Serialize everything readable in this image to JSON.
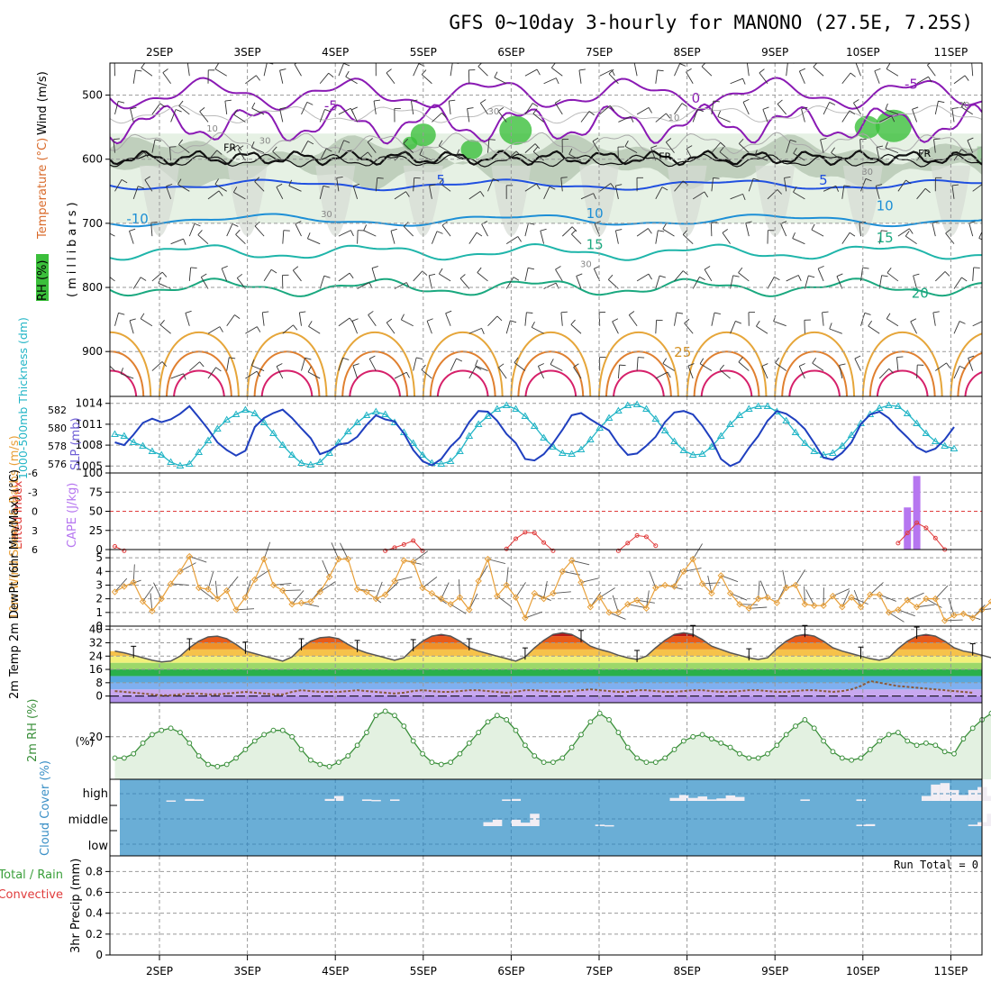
{
  "title": "GFS 0~10day 3-hourly for MANONO (27.5E, 7.25S)",
  "colors": {
    "slp": "#1f3fbf",
    "thickness": "#22b5c6",
    "cape": "#b676f0",
    "li": "#e03c3c",
    "wind": "#e8a03a",
    "rh": "#3a8f3a",
    "rh_fill": "#e3f1e1",
    "cloud_bg": "#6aaed6",
    "cloud_patch": "#f2eef4",
    "green_dark": "#3bbf3b",
    "purple": "#8a1ab4",
    "blue": "#2050e0"
  },
  "chart_data": [
    {
      "type": "heatmap",
      "name": "upper",
      "days": [
        "2SEP",
        "3SEP",
        "4SEP",
        "5SEP",
        "6SEP",
        "7SEP",
        "8SEP",
        "9SEP",
        "10SEP",
        "11SEP"
      ],
      "ylabel": "(millibars)",
      "side_labels": [
        "Temperature (°C)",
        "Wind (m/s)",
        "RH (%)"
      ],
      "yticks": [
        500,
        600,
        700,
        800,
        900
      ],
      "ylim": [
        450,
        970
      ],
      "contour_labels": [
        {
          "text": "-5",
          "day": 1.95,
          "p": 524,
          "c": "purple"
        },
        {
          "text": "0",
          "day": 6.1,
          "p": 512,
          "c": "purple"
        },
        {
          "text": "-5",
          "day": 8.55,
          "p": 490,
          "c": "purple"
        },
        {
          "text": "FR",
          "day": 0.8,
          "p": 587,
          "c": "black"
        },
        {
          "text": "FR",
          "day": 5.75,
          "p": 601,
          "c": "black"
        },
        {
          "text": "FR",
          "day": 8.7,
          "p": 596,
          "c": "black"
        },
        {
          "text": "5",
          "day": 3.2,
          "p": 640,
          "c": "blue"
        },
        {
          "text": "5",
          "day": 7.55,
          "p": 640,
          "c": "blue"
        },
        {
          "text": "-10",
          "day": -0.25,
          "p": 700,
          "c": "cyan"
        },
        {
          "text": "10",
          "day": 4.95,
          "p": 692,
          "c": "cyan"
        },
        {
          "text": "10",
          "day": 8.25,
          "p": 680,
          "c": "cyan"
        },
        {
          "text": "15",
          "day": 4.95,
          "p": 740,
          "c": "teal"
        },
        {
          "text": "15",
          "day": 8.25,
          "p": 730,
          "c": "teal"
        },
        {
          "text": "20",
          "day": 8.65,
          "p": 816,
          "c": "teal"
        },
        {
          "text": "25",
          "day": 5.95,
          "p": 908,
          "c": "orange"
        },
        {
          "text": "10",
          "day": 0.6,
          "p": 557,
          "c": "gray"
        },
        {
          "text": "30",
          "day": 1.2,
          "p": 576,
          "c": "gray"
        },
        {
          "text": "30",
          "day": 3.8,
          "p": 530,
          "c": "gray"
        },
        {
          "text": "10",
          "day": 5.85,
          "p": 540,
          "c": "gray"
        },
        {
          "text": "30",
          "day": 8.05,
          "p": 624,
          "c": "gray"
        },
        {
          "text": "30",
          "day": 9.15,
          "p": 520,
          "c": "gray"
        },
        {
          "text": "30",
          "day": 1.9,
          "p": 690,
          "c": "gray"
        },
        {
          "text": "30",
          "day": 4.85,
          "p": 768,
          "c": "gray"
        }
      ]
    },
    {
      "type": "line",
      "name": "slp_thickness",
      "ylabel": "SLP (mb)",
      "ylabel2": "1000-500mb Thickness (dm)",
      "yticks": [
        1005,
        1008,
        1011,
        1014
      ],
      "ylim": [
        1004,
        1015
      ],
      "yticks2": [
        576,
        578,
        580,
        582
      ],
      "ylim2": [
        575,
        583.5
      ],
      "slp": [
        1008.4,
        1008.0,
        1009.5,
        1011.2,
        1011.8,
        1011.3,
        1011.7,
        1012.5,
        1013.6,
        1012.0,
        1010.3,
        1008.4,
        1007.3,
        1006.5,
        1007.2,
        1010.6,
        1011.9,
        1012.6,
        1013.1,
        1011.9,
        1010.4,
        1009.0,
        1006.7,
        1007.2,
        1008.1,
        1008.3,
        1009.2,
        1010.9,
        1012.3,
        1011.7,
        1011.4,
        1009.7,
        1007.3,
        1005.7,
        1005.1,
        1006.0,
        1007.8,
        1009.1,
        1011.3,
        1012.9,
        1012.8,
        1011.5,
        1009.6,
        1008.3,
        1006.0,
        1005.8,
        1006.7,
        1008.3,
        1010.2,
        1012.3,
        1012.6,
        1011.7,
        1010.9,
        1010.1,
        1008.1,
        1006.6,
        1006.8,
        1007.9,
        1009.2,
        1011.3,
        1012.7,
        1012.9,
        1012.4,
        1010.8,
        1008.8,
        1006.0,
        1005.0,
        1005.6,
        1007.6,
        1009.3,
        1011.5,
        1012.9,
        1012.5,
        1011.6,
        1010.3,
        1008.3,
        1006.2,
        1005.9,
        1006.9,
        1008.4,
        1011.0,
        1012.4,
        1012.8,
        1011.9,
        1010.4,
        1009.1,
        1007.7,
        1007.0,
        1007.5,
        1008.8,
        1010.6
      ],
      "thickness": [
        579.3,
        579.1,
        578.4,
        578.0,
        577.4,
        577.0,
        576.2,
        575.8,
        576.0,
        577.3,
        578.6,
        579.9,
        580.9,
        581.5,
        582.0,
        581.6,
        580.6,
        579.4,
        578.1,
        577.0,
        576.1,
        575.9,
        576.2,
        577.2,
        578.4,
        579.6,
        580.6,
        581.4,
        581.8,
        581.5,
        580.6,
        579.5,
        578.3,
        577.0,
        576.1,
        576.0,
        576.3,
        577.4,
        579.1,
        580.4,
        581.3,
        582.1,
        582.5,
        582.1,
        581.3,
        580.2,
        578.9,
        577.9,
        577.2,
        577.1,
        577.6,
        578.7,
        580.0,
        581.1,
        581.9,
        582.5,
        582.6,
        582.1,
        581.0,
        579.7,
        578.5,
        577.5,
        577.0,
        577.1,
        577.9,
        579.1,
        580.4,
        581.4,
        582.1,
        582.4,
        582.4,
        581.8,
        580.8,
        579.5,
        578.3,
        577.4,
        577.0,
        577.2,
        578.0,
        579.2,
        580.5,
        581.5,
        582.2,
        582.5,
        582.4,
        581.6,
        580.5,
        579.4,
        578.5,
        578.0,
        577.7
      ]
    },
    {
      "type": "bar",
      "name": "cape_li",
      "ylabel": "CAPE (J/kg)",
      "ylabel2": "Lifted Index",
      "yticks": [
        0,
        25,
        50,
        75,
        100
      ],
      "ylim": [
        0,
        100
      ],
      "yticks2": [
        -6,
        -3,
        0,
        3,
        6
      ],
      "ylim2": [
        -6,
        6
      ],
      "cape_bars": [
        {
          "t": 85,
          "v": 55
        },
        {
          "t": 86,
          "v": 96
        }
      ],
      "li_points": [
        [
          0,
          5.5
        ],
        [
          1,
          6.2
        ],
        [
          29,
          6.2
        ],
        [
          30,
          5.7
        ],
        [
          31,
          5.2
        ],
        [
          32,
          4.6
        ],
        [
          33,
          6.2
        ],
        [
          42,
          5.9
        ],
        [
          43,
          4.3
        ],
        [
          44,
          3.3
        ],
        [
          45,
          3.4
        ],
        [
          46,
          4.9
        ],
        [
          47,
          6.2
        ],
        [
          54,
          6.2
        ],
        [
          55,
          5.0
        ],
        [
          56,
          3.8
        ],
        [
          57,
          4.0
        ],
        [
          58,
          5.4
        ],
        [
          84,
          5.0
        ],
        [
          85,
          3.4
        ],
        [
          86,
          1.8
        ],
        [
          87,
          2.6
        ],
        [
          88,
          4.2
        ],
        [
          89,
          6.0
        ]
      ]
    },
    {
      "type": "line",
      "name": "wind10m",
      "ylabel": "10m Wind Speed & Barbs (m/s)",
      "yticks": [
        0,
        1,
        2,
        3,
        4,
        5
      ],
      "ylim": [
        0,
        5.6
      ],
      "values": [
        2.5,
        2.9,
        3.2,
        1.8,
        1.1,
        2.0,
        3.1,
        4.0,
        5.1,
        2.8,
        2.7,
        2.0,
        2.6,
        1.2,
        2.1,
        3.4,
        4.9,
        3.0,
        2.6,
        1.6,
        1.7,
        1.8,
        2.5,
        3.6,
        4.9,
        4.9,
        2.7,
        2.5,
        2.0,
        2.3,
        3.3,
        4.8,
        4.7,
        2.8,
        2.4,
        2.0,
        1.6,
        2.1,
        1.2,
        3.3,
        4.9,
        2.2,
        3.0,
        2.1,
        0.6,
        2.4,
        2.0,
        2.4,
        4.0,
        4.8,
        3.2,
        1.4,
        2.1,
        1.0,
        1.0,
        1.6,
        1.9,
        1.3,
        2.8,
        3.0,
        2.9,
        4.0,
        4.9,
        3.1,
        2.4,
        3.7,
        2.4,
        1.6,
        1.3,
        2.0,
        2.1,
        1.7,
        2.8,
        3.0,
        1.6,
        1.5,
        1.5,
        2.2,
        1.4,
        2.1,
        1.4,
        2.3,
        2.3,
        1.0,
        1.2,
        1.9,
        1.4,
        2.0,
        2.0,
        0.4,
        0.8,
        0.9,
        0.6,
        1.2,
        1.8
      ]
    },
    {
      "type": "area",
      "name": "temp2m",
      "ylabel": "2m Temp 2m DewPt (6hr Min/Max) (°C)",
      "yticks": [
        0,
        8,
        16,
        24,
        32,
        40
      ],
      "ylim": [
        -4,
        42
      ],
      "values": [
        27,
        26,
        24.5,
        23,
        21.5,
        20.5,
        21,
        24,
        29,
        33,
        35.5,
        36,
        34.5,
        31,
        27,
        25.5,
        24,
        22.5,
        21,
        23.5,
        29,
        33,
        35,
        35.5,
        34.5,
        31,
        28,
        26,
        24.5,
        23,
        21.5,
        23,
        28.5,
        33,
        36,
        37,
        36,
        33,
        29,
        27,
        25.5,
        24,
        22.5,
        21,
        23.5,
        29,
        33.5,
        37,
        38,
        37,
        34,
        30,
        28,
        26.5,
        24.5,
        23,
        22,
        24,
        29,
        33.5,
        37,
        38,
        37,
        34,
        30,
        28,
        26,
        24.5,
        23,
        22,
        23,
        28.5,
        33,
        36,
        37,
        36,
        33,
        29,
        27,
        25.5,
        24,
        22.5,
        21.5,
        23,
        28.5,
        33,
        36,
        37,
        36,
        33,
        29,
        27,
        26,
        24.5,
        23,
        22,
        24,
        28
      ],
      "dewpoint": [
        3,
        2.5,
        2,
        1.5,
        1,
        0.5,
        0.5,
        1,
        1.5,
        1.5,
        1,
        1,
        1.5,
        2,
        2.5,
        2,
        1.5,
        1,
        1,
        2.5,
        3.5,
        3,
        2.5,
        2.5,
        2.5,
        3,
        3.5,
        3,
        2.5,
        2,
        1.5,
        2,
        3,
        3.5,
        3,
        2.5,
        2.5,
        3,
        3.5,
        3.5,
        3,
        2.5,
        2,
        2.5,
        3.5,
        3.5,
        3,
        2.5,
        2.5,
        3,
        3.5,
        4,
        3.5,
        3,
        2.5,
        2.5,
        3.5,
        3.5,
        3,
        2.5,
        2.5,
        3,
        3.5,
        3.5,
        3,
        2.5,
        2.5,
        3,
        3.5,
        3.5,
        3,
        2.5,
        2.5,
        3,
        3.5,
        3.5,
        3,
        2.5,
        3,
        4,
        6,
        9,
        8,
        7,
        6,
        5.5,
        5,
        4.5,
        4,
        3.5,
        3,
        2.5,
        2
      ]
    },
    {
      "type": "area",
      "name": "rh2m",
      "ylabel": "2m RH (%)",
      "yticks": [
        20
      ],
      "ylim": [
        0,
        36
      ],
      "values": [
        10,
        10,
        12,
        17,
        21,
        23,
        24,
        22,
        17,
        11,
        7,
        6,
        7,
        10,
        14,
        18,
        21,
        23,
        23,
        20,
        14,
        9,
        7,
        6,
        8,
        11,
        16,
        22,
        30,
        32,
        30,
        25,
        18,
        12,
        8,
        7,
        8,
        12,
        17,
        22,
        27,
        30,
        28,
        23,
        16,
        11,
        8,
        8,
        10,
        15,
        21,
        27,
        31,
        28,
        22,
        15,
        10,
        8,
        8,
        10,
        14,
        18,
        20,
        21,
        19,
        17,
        15,
        12,
        10,
        10,
        12,
        16,
        21,
        25,
        28,
        24,
        18,
        13,
        10,
        9,
        10,
        14,
        18,
        21,
        22,
        18,
        16,
        17,
        16,
        13,
        12,
        19,
        24,
        28,
        31,
        19
      ]
    },
    {
      "type": "heatmap",
      "name": "cloud",
      "ylabel": "Cloud Cover (%)",
      "levels": [
        "high",
        "middle",
        "low"
      ],
      "high": [
        [
          6,
          1
        ],
        [
          8,
          4
        ],
        [
          9,
          3
        ],
        [
          23,
          4
        ],
        [
          24,
          10
        ],
        [
          27,
          3
        ],
        [
          28,
          2
        ],
        [
          30,
          3
        ],
        [
          42,
          3
        ],
        [
          43,
          4
        ],
        [
          60,
          6
        ],
        [
          61,
          12
        ],
        [
          62,
          6
        ],
        [
          63,
          9
        ],
        [
          64,
          3
        ],
        [
          65,
          5
        ],
        [
          66,
          11
        ],
        [
          67,
          8
        ],
        [
          74,
          3
        ],
        [
          80,
          3
        ],
        [
          87,
          10
        ],
        [
          88,
          33
        ],
        [
          89,
          36
        ],
        [
          90,
          22
        ],
        [
          91,
          12
        ],
        [
          92,
          22
        ],
        [
          93,
          28
        ],
        [
          94,
          10
        ]
      ],
      "middle": [
        [
          40,
          8
        ],
        [
          41,
          13
        ],
        [
          43,
          13
        ],
        [
          44,
          7
        ],
        [
          45,
          25
        ],
        [
          52,
          3
        ],
        [
          53,
          2
        ],
        [
          80,
          3
        ],
        [
          81,
          4
        ],
        [
          92,
          3
        ],
        [
          93,
          8
        ],
        [
          94,
          25
        ]
      ],
      "low": []
    },
    {
      "type": "bar",
      "name": "precip",
      "ylabel": "3hr Precip (mm)",
      "side_labels": [
        "Total / Rain",
        "Convective"
      ],
      "yticks": [
        0,
        0.2,
        0.4,
        0.6,
        0.8
      ],
      "ylim": [
        0,
        0.95
      ],
      "run_total": "Run Total = 0",
      "values": []
    }
  ]
}
